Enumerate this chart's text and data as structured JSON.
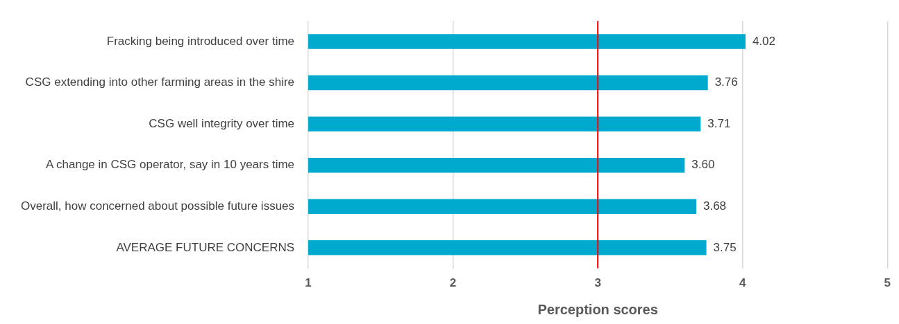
{
  "chart_data": {
    "type": "bar",
    "orientation": "horizontal",
    "xlabel": "Perception scores",
    "categories": [
      "Fracking being introduced over time",
      "CSG extending into other farming areas in the shire",
      "CSG well integrity over time",
      "A change in CSG operator, say in 10 years time",
      "Overall, how concerned about possible future issues",
      "AVERAGE FUTURE CONCERNS"
    ],
    "values": [
      4.02,
      3.76,
      3.71,
      3.6,
      3.68,
      3.75
    ],
    "value_labels": [
      "4.02",
      "3.76",
      "3.71",
      "3.60",
      "3.68",
      "3.75"
    ],
    "color": "#00a9ce",
    "xlim": [
      1,
      5
    ],
    "xticks": [
      1,
      2,
      3,
      4,
      5
    ],
    "grid": "x",
    "legend": false,
    "ref_lines": [
      {
        "axis": "x",
        "value": 3,
        "color": "#ff0000"
      }
    ]
  }
}
